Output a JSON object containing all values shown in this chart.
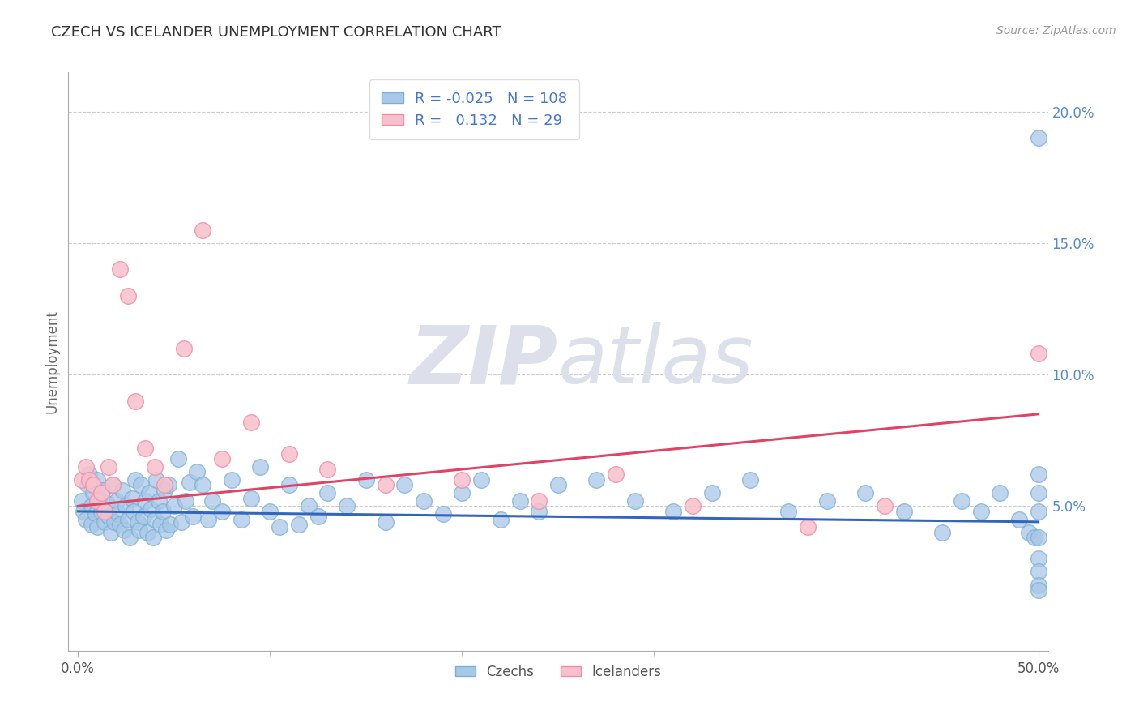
{
  "title": "CZECH VS ICELANDER UNEMPLOYMENT CORRELATION CHART",
  "source": "Source: ZipAtlas.com",
  "ylabel": "Unemployment",
  "xlim": [
    -0.005,
    0.505
  ],
  "ylim": [
    -0.005,
    0.215
  ],
  "yticks": [
    0.05,
    0.1,
    0.15,
    0.2
  ],
  "ytick_labels": [
    "5.0%",
    "10.0%",
    "15.0%",
    "20.0%"
  ],
  "xtick_left_label": "0.0%",
  "xtick_right_label": "50.0%",
  "czech_R": -0.025,
  "czech_N": 108,
  "icelander_R": 0.132,
  "icelander_N": 29,
  "czech_color": "#a8c8e8",
  "czech_edge_color": "#7bafd4",
  "icelander_color": "#f8c0cc",
  "icelander_edge_color": "#f090a8",
  "czech_line_color": "#3366bb",
  "icelander_line_color": "#dd4466",
  "background_color": "#ffffff",
  "grid_color": "#cccccc",
  "watermark_zip": "ZIP",
  "watermark_atlas": "atlas",
  "watermark_color": "#dde0ea",
  "title_color": "#333333",
  "ylabel_color": "#666666",
  "ytick_color": "#5588cc",
  "source_color": "#999999",
  "legend_label_color": "#4477cc",
  "czech_x": [
    0.002,
    0.003,
    0.004,
    0.005,
    0.006,
    0.007,
    0.007,
    0.008,
    0.009,
    0.01,
    0.01,
    0.011,
    0.012,
    0.013,
    0.014,
    0.015,
    0.016,
    0.017,
    0.018,
    0.019,
    0.02,
    0.021,
    0.022,
    0.023,
    0.024,
    0.025,
    0.026,
    0.027,
    0.028,
    0.029,
    0.03,
    0.031,
    0.032,
    0.033,
    0.034,
    0.035,
    0.036,
    0.037,
    0.038,
    0.039,
    0.04,
    0.041,
    0.042,
    0.043,
    0.044,
    0.045,
    0.046,
    0.047,
    0.048,
    0.05,
    0.052,
    0.054,
    0.056,
    0.058,
    0.06,
    0.062,
    0.065,
    0.068,
    0.07,
    0.075,
    0.08,
    0.085,
    0.09,
    0.095,
    0.1,
    0.105,
    0.11,
    0.115,
    0.12,
    0.125,
    0.13,
    0.14,
    0.15,
    0.16,
    0.17,
    0.18,
    0.19,
    0.2,
    0.21,
    0.22,
    0.23,
    0.24,
    0.25,
    0.27,
    0.29,
    0.31,
    0.33,
    0.35,
    0.37,
    0.39,
    0.41,
    0.43,
    0.45,
    0.46,
    0.47,
    0.48,
    0.49,
    0.495,
    0.498,
    0.5,
    0.5,
    0.5,
    0.5,
    0.5,
    0.5,
    0.5,
    0.5,
    0.5
  ],
  "czech_y": [
    0.052,
    0.048,
    0.045,
    0.058,
    0.062,
    0.05,
    0.043,
    0.055,
    0.047,
    0.06,
    0.042,
    0.053,
    0.048,
    0.056,
    0.044,
    0.051,
    0.046,
    0.04,
    0.058,
    0.044,
    0.052,
    0.047,
    0.043,
    0.056,
    0.041,
    0.05,
    0.045,
    0.038,
    0.053,
    0.048,
    0.06,
    0.044,
    0.041,
    0.058,
    0.046,
    0.052,
    0.04,
    0.055,
    0.049,
    0.038,
    0.045,
    0.06,
    0.052,
    0.043,
    0.048,
    0.056,
    0.041,
    0.058,
    0.043,
    0.05,
    0.068,
    0.044,
    0.052,
    0.059,
    0.046,
    0.063,
    0.058,
    0.045,
    0.052,
    0.048,
    0.06,
    0.045,
    0.053,
    0.065,
    0.048,
    0.042,
    0.058,
    0.043,
    0.05,
    0.046,
    0.055,
    0.05,
    0.06,
    0.044,
    0.058,
    0.052,
    0.047,
    0.055,
    0.06,
    0.045,
    0.052,
    0.048,
    0.058,
    0.06,
    0.052,
    0.048,
    0.055,
    0.06,
    0.048,
    0.052,
    0.055,
    0.048,
    0.04,
    0.052,
    0.048,
    0.055,
    0.045,
    0.04,
    0.038,
    0.19,
    0.062,
    0.055,
    0.048,
    0.038,
    0.03,
    0.025,
    0.02,
    0.018
  ],
  "icelander_x": [
    0.002,
    0.004,
    0.006,
    0.008,
    0.01,
    0.012,
    0.014,
    0.016,
    0.018,
    0.022,
    0.026,
    0.03,
    0.035,
    0.04,
    0.045,
    0.055,
    0.065,
    0.075,
    0.09,
    0.11,
    0.13,
    0.16,
    0.2,
    0.24,
    0.28,
    0.32,
    0.38,
    0.42,
    0.5
  ],
  "icelander_y": [
    0.06,
    0.065,
    0.06,
    0.058,
    0.052,
    0.055,
    0.048,
    0.065,
    0.058,
    0.14,
    0.13,
    0.09,
    0.072,
    0.065,
    0.058,
    0.11,
    0.155,
    0.068,
    0.082,
    0.07,
    0.064,
    0.058,
    0.06,
    0.052,
    0.062,
    0.05,
    0.042,
    0.05,
    0.108
  ]
}
